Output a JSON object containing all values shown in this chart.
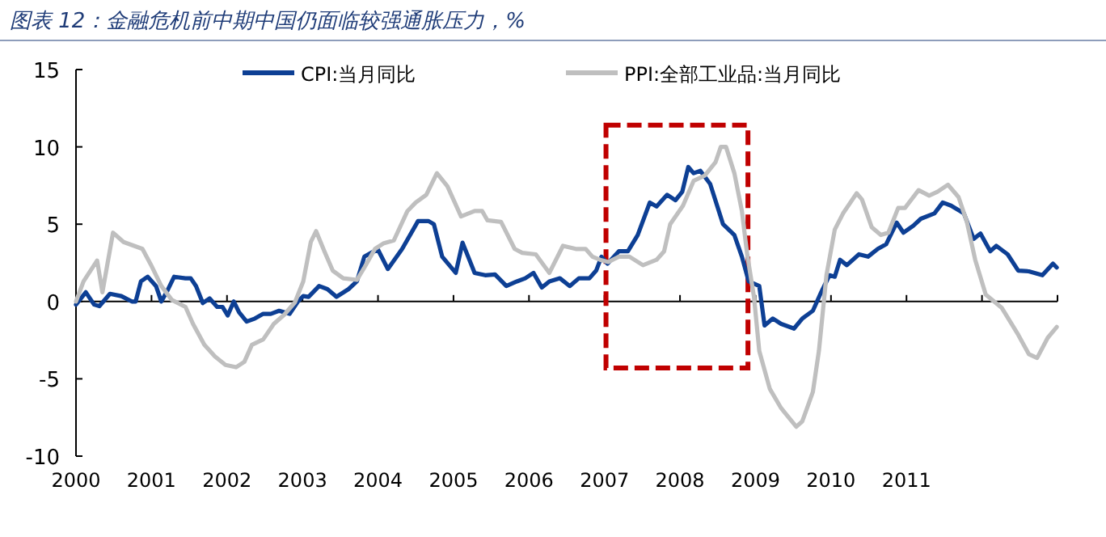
{
  "chart_data": {
    "type": "line",
    "title": "图表 12：金融危机前中期中国仍面临较强通胀压力，%",
    "xlim": [
      2000,
      2013
    ],
    "xticks": [
      2000,
      2001,
      2002,
      2003,
      2004,
      2005,
      2006,
      2007,
      2008,
      2009,
      2010,
      2011,
      {
        "value": 2012,
        "label": null
      },
      {
        "value": 2013,
        "label": null
      }
    ],
    "ylim": [
      -10,
      15
    ],
    "yticks": [
      -10,
      -5,
      0,
      5,
      10,
      15
    ],
    "legend": "top",
    "marker": "none",
    "line_style": "solid",
    "series": [
      {
        "name": "CPI:当月同比",
        "color": "#0d3f94",
        "x": [
          2000.0,
          2000.13,
          2000.24,
          2000.31,
          2000.45,
          2000.6,
          2000.74,
          2000.79,
          2000.86,
          2000.95,
          2001.06,
          2001.13,
          2001.2,
          2001.3,
          2001.45,
          2001.52,
          2001.59,
          2001.68,
          2001.77,
          2001.87,
          2001.94,
          2002.01,
          2002.09,
          2002.16,
          2002.26,
          2002.37,
          2002.48,
          2002.58,
          2002.69,
          2002.83,
          2002.94,
          2003.01,
          2003.08,
          2003.22,
          2003.33,
          2003.45,
          2003.61,
          2003.72,
          2003.82,
          2003.93,
          2004.0,
          2004.13,
          2004.32,
          2004.53,
          2004.67,
          2004.74,
          2004.85,
          2005.03,
          2005.12,
          2005.28,
          2005.42,
          2005.55,
          2005.7,
          2005.84,
          2005.95,
          2006.06,
          2006.17,
          2006.27,
          2006.41,
          2006.54,
          2006.66,
          2006.8,
          2006.89,
          2006.96,
          2007.04,
          2007.19,
          2007.31,
          2007.44,
          2007.6,
          2007.69,
          2007.83,
          2007.94,
          2008.03,
          2008.11,
          2008.18,
          2008.27,
          2008.4,
          2008.57,
          2008.72,
          2008.82,
          2008.91,
          2009.05,
          2009.12,
          2009.23,
          2009.34,
          2009.51,
          2009.62,
          2009.76,
          2009.87,
          2009.98,
          2010.05,
          2010.12,
          2010.21,
          2010.37,
          2010.49,
          2010.62,
          2010.73,
          2010.87,
          2010.96,
          2011.09,
          2011.19,
          2011.37,
          2011.48,
          2011.59,
          2011.76,
          2011.89,
          2011.98,
          2012.11,
          2012.19,
          2012.34,
          2012.48,
          2012.62,
          2012.8,
          2012.94,
          2012.99
        ],
        "values": [
          -0.2,
          0.6,
          -0.2,
          -0.3,
          0.5,
          0.35,
          0,
          0,
          1.3,
          1.6,
          1.0,
          0,
          0.6,
          1.6,
          1.5,
          1.5,
          1.0,
          -0.1,
          0.2,
          -0.35,
          -0.35,
          -0.9,
          0,
          -0.7,
          -1.3,
          -1.1,
          -0.8,
          -0.8,
          -0.6,
          -0.8,
          0,
          0.35,
          0.3,
          1.0,
          0.8,
          0.3,
          0.8,
          1.3,
          2.9,
          3.2,
          3.35,
          2.1,
          3.4,
          5.2,
          5.2,
          5.0,
          2.9,
          1.85,
          3.8,
          1.85,
          1.7,
          1.75,
          1.0,
          1.3,
          1.5,
          1.85,
          0.9,
          1.3,
          1.5,
          1.0,
          1.5,
          1.5,
          2.0,
          2.9,
          2.45,
          3.25,
          3.25,
          4.3,
          6.4,
          6.15,
          6.9,
          6.55,
          7.1,
          8.7,
          8.3,
          8.45,
          7.6,
          5.0,
          4.3,
          2.9,
          1.3,
          1.0,
          -1.55,
          -1.1,
          -1.45,
          -1.75,
          -1.1,
          -0.6,
          0.6,
          1.7,
          1.6,
          2.7,
          2.35,
          3.05,
          2.9,
          3.4,
          3.7,
          5.1,
          4.45,
          4.9,
          5.35,
          5.7,
          6.4,
          6.2,
          5.7,
          4.05,
          4.4,
          3.25,
          3.6,
          3.05,
          2.0,
          1.95,
          1.7,
          2.45,
          2.2
        ]
      },
      {
        "name": "PPI:全部工业品:当月同比",
        "color": "#bfbfbf",
        "x": [
          2000.0,
          2000.1,
          2000.28,
          2000.35,
          2000.49,
          2000.63,
          2000.77,
          2000.88,
          2000.99,
          2001.13,
          2001.27,
          2001.45,
          2001.55,
          2001.7,
          2001.84,
          2001.98,
          2002.12,
          2002.23,
          2002.33,
          2002.48,
          2002.62,
          2002.76,
          2002.9,
          2003.01,
          2003.11,
          2003.18,
          2003.29,
          2003.4,
          2003.54,
          2003.72,
          2003.82,
          2003.96,
          2004.07,
          2004.21,
          2004.39,
          2004.5,
          2004.64,
          2004.78,
          2004.92,
          2005.1,
          2005.28,
          2005.38,
          2005.45,
          2005.63,
          2005.81,
          2005.91,
          2006.09,
          2006.27,
          2006.45,
          2006.62,
          2006.75,
          2006.84,
          2006.94,
          2007.05,
          2007.19,
          2007.33,
          2007.51,
          2007.69,
          2007.79,
          2007.87,
          2008.04,
          2008.18,
          2008.33,
          2008.47,
          2008.54,
          2008.61,
          2008.72,
          2008.82,
          2008.89,
          2008.98,
          2009.05,
          2009.19,
          2009.34,
          2009.54,
          2009.62,
          2009.76,
          2009.84,
          2009.94,
          2010.05,
          2010.16,
          2010.34,
          2010.41,
          2010.54,
          2010.66,
          2010.76,
          2010.89,
          2010.98,
          2011.16,
          2011.3,
          2011.41,
          2011.55,
          2011.69,
          2011.8,
          2011.91,
          2012.05,
          2012.26,
          2012.48,
          2012.62,
          2012.73,
          2012.87,
          2012.99
        ],
        "values": [
          0,
          1.3,
          2.65,
          0.6,
          4.45,
          3.85,
          3.6,
          3.4,
          2.4,
          1.0,
          0.1,
          -0.35,
          -1.45,
          -2.8,
          -3.55,
          -4.1,
          -4.25,
          -3.9,
          -2.8,
          -2.45,
          -1.45,
          -0.85,
          -0.05,
          1.3,
          3.85,
          4.55,
          3.25,
          2.0,
          1.5,
          1.4,
          2.2,
          3.4,
          3.75,
          3.95,
          5.85,
          6.4,
          6.9,
          8.3,
          7.45,
          5.5,
          5.85,
          5.85,
          5.25,
          5.15,
          3.4,
          3.15,
          3.05,
          1.85,
          3.6,
          3.4,
          3.4,
          2.9,
          2.7,
          2.55,
          2.9,
          2.9,
          2.35,
          2.7,
          3.25,
          5.0,
          6.2,
          7.8,
          8.15,
          9.0,
          10.0,
          10.0,
          8.3,
          5.85,
          3.05,
          0.3,
          -3.2,
          -5.65,
          -6.9,
          -8.1,
          -7.75,
          -5.85,
          -3.2,
          1.7,
          4.65,
          5.7,
          7.0,
          6.6,
          4.8,
          4.3,
          4.45,
          6.05,
          6.05,
          7.2,
          6.85,
          7.1,
          7.55,
          6.75,
          5.15,
          2.7,
          0.45,
          -0.4,
          -2.15,
          -3.4,
          -3.65,
          -2.35,
          -1.65
        ]
      }
    ]
  }
}
